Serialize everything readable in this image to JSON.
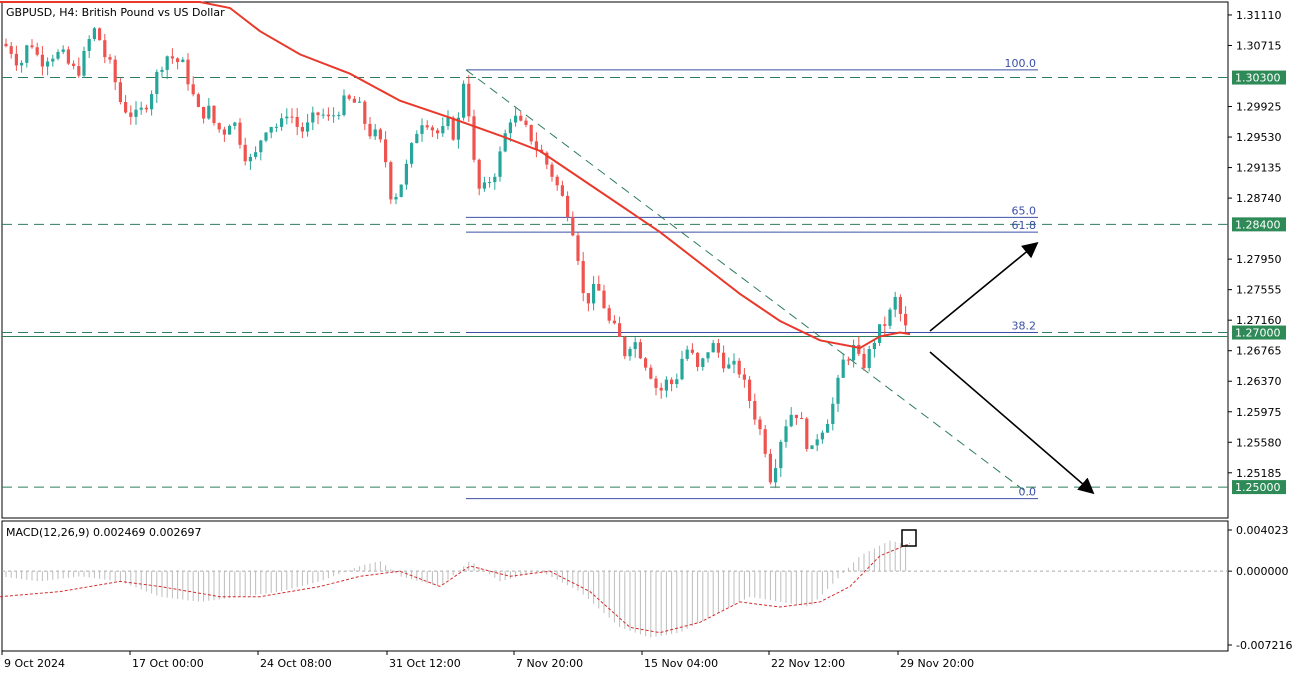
{
  "header": {
    "symbol_text": "GBPUSD, H4:  British Pound vs US Dollar"
  },
  "macd_header": {
    "text": "MACD(12,26,9) 0.002469 0.002697"
  },
  "colors": {
    "bull": "#26a69a",
    "bear": "#ef5350",
    "ma": "#e8392b",
    "level_line": "#2e7d5b",
    "level_tag": "#2e8b57",
    "fib": "#3b4fa8",
    "macd_hist": "#bdbdbd",
    "macd_signal": "#d32f2f",
    "frame": "#000000"
  },
  "chart_data": [
    {
      "type": "candlestick",
      "symbol": "GBPUSD",
      "timeframe": "H4",
      "ylim": [
        1.2485,
        1.3135
      ],
      "y_ticks": [
        "1.31110",
        "1.30715",
        "1.30300",
        "1.29925",
        "1.29530",
        "1.29135",
        "1.28740",
        "1.28400",
        "1.27950",
        "1.27555",
        "1.27160",
        "1.27000",
        "1.26765",
        "1.26370",
        "1.25975",
        "1.25580",
        "1.25185",
        "1.25000"
      ],
      "x_ticks": [
        "9 Oct 2024",
        "17 Oct 00:00",
        "24 Oct 08:00",
        "31 Oct 12:00",
        "7 Nov 20:00",
        "15 Nov 04:00",
        "22 Nov 12:00",
        "29 Nov 20:00"
      ],
      "horizontal_levels": [
        {
          "value": 1.303,
          "label": "1.30300"
        },
        {
          "value": 1.284,
          "label": "1.28400"
        },
        {
          "value": 1.27,
          "label": "1.27000"
        },
        {
          "value": 1.25,
          "label": "1.25000"
        }
      ],
      "fibonacci": {
        "levels": [
          {
            "label": "100.0",
            "value": 1.304
          },
          {
            "label": "65.0",
            "value": 1.2849
          },
          {
            "label": "61.8",
            "value": 1.283
          },
          {
            "label": "38.2",
            "value": 1.27
          },
          {
            "label": "0.0",
            "value": 1.2485
          }
        ]
      },
      "trendline": {
        "from": {
          "x": "5 Nov",
          "y": 1.304
        },
        "to": {
          "x": "12 Dec",
          "y": 1.25
        }
      },
      "scenario_arrows": [
        {
          "direction": "up",
          "from": 1.2722,
          "to": 1.2817
        },
        {
          "direction": "down",
          "from": 1.2688,
          "to": 1.2508
        }
      ],
      "price_path": [
        [
          0,
          1.3075
        ],
        [
          10,
          1.3068
        ],
        [
          20,
          1.3045
        ],
        [
          30,
          1.308
        ],
        [
          40,
          1.305
        ],
        [
          50,
          1.306
        ],
        [
          62,
          1.306
        ],
        [
          72,
          1.304
        ],
        [
          80,
          1.304
        ],
        [
          88,
          1.3075
        ],
        [
          96,
          1.3095
        ],
        [
          104,
          1.306
        ],
        [
          112,
          1.304
        ],
        [
          120,
          1.3
        ],
        [
          128,
          1.2985
        ],
        [
          136,
          1.298
        ],
        [
          144,
          1.299
        ],
        [
          152,
          1.3015
        ],
        [
          160,
          1.3045
        ],
        [
          168,
          1.306
        ],
        [
          176,
          1.3052
        ],
        [
          184,
          1.3045
        ],
        [
          192,
          1.301
        ],
        [
          200,
          1.298
        ],
        [
          208,
          1.299
        ],
        [
          216,
          1.2965
        ],
        [
          224,
          1.296
        ],
        [
          232,
          1.298
        ],
        [
          240,
          1.295
        ],
        [
          248,
          1.292
        ],
        [
          256,
          1.293
        ],
        [
          264,
          1.2965
        ],
        [
          272,
          1.297
        ],
        [
          280,
          1.2965
        ],
        [
          288,
          1.299
        ],
        [
          296,
          1.2968
        ],
        [
          304,
          1.296
        ],
        [
          312,
          1.2975
        ],
        [
          320,
          1.2985
        ],
        [
          328,
          1.2975
        ],
        [
          336,
          1.2985
        ],
        [
          344,
          1.2998
        ],
        [
          352,
          1.3
        ],
        [
          360,
          1.299
        ],
        [
          368,
          1.296
        ],
        [
          376,
          1.2955
        ],
        [
          384,
          1.2935
        ],
        [
          392,
          1.287
        ],
        [
          400,
          1.289
        ],
        [
          408,
          1.292
        ],
        [
          416,
          1.296
        ],
        [
          424,
          1.298
        ],
        [
          432,
          1.2965
        ],
        [
          440,
          1.2955
        ],
        [
          448,
          1.297
        ],
        [
          456,
          1.295
        ],
        [
          464,
          1.303
        ],
        [
          470,
          1.2975
        ],
        [
          476,
          1.289
        ],
        [
          482,
          1.288
        ],
        [
          488,
          1.2895
        ],
        [
          494,
          1.2905
        ],
        [
          500,
          1.293
        ],
        [
          506,
          1.296
        ],
        [
          512,
          1.2985
        ],
        [
          518,
          1.297
        ],
        [
          524,
          1.2965
        ],
        [
          530,
          1.2955
        ],
        [
          536,
          1.294
        ],
        [
          542,
          1.293
        ],
        [
          548,
          1.2915
        ],
        [
          554,
          1.29
        ],
        [
          560,
          1.288
        ],
        [
          566,
          1.2865
        ],
        [
          572,
          1.284
        ],
        [
          578,
          1.28
        ],
        [
          584,
          1.274
        ],
        [
          590,
          1.2745
        ],
        [
          596,
          1.276
        ],
        [
          602,
          1.2745
        ],
        [
          608,
          1.2715
        ],
        [
          614,
          1.2705
        ],
        [
          620,
          1.269
        ],
        [
          626,
          1.267
        ],
        [
          632,
          1.2695
        ],
        [
          638,
          1.268
        ],
        [
          644,
          1.2665
        ],
        [
          650,
          1.265
        ],
        [
          656,
          1.263
        ],
        [
          662,
          1.2625
        ],
        [
          668,
          1.264
        ],
        [
          674,
          1.263
        ],
        [
          680,
          1.266
        ],
        [
          686,
          1.268
        ],
        [
          692,
          1.267
        ],
        [
          698,
          1.265
        ],
        [
          704,
          1.2665
        ],
        [
          710,
          1.2685
        ],
        [
          716,
          1.268
        ],
        [
          722,
          1.2665
        ],
        [
          728,
          1.2655
        ],
        [
          734,
          1.2655
        ],
        [
          740,
          1.265
        ],
        [
          746,
          1.2625
        ],
        [
          752,
          1.2605
        ],
        [
          758,
          1.258
        ],
        [
          764,
          1.256
        ],
        [
          770,
          1.2512
        ],
        [
          776,
          1.2535
        ],
        [
          782,
          1.257
        ],
        [
          788,
          1.259
        ],
        [
          794,
          1.26
        ],
        [
          800,
          1.259
        ],
        [
          806,
          1.256
        ],
        [
          812,
          1.2545
        ],
        [
          818,
          1.257
        ],
        [
          824,
          1.258
        ],
        [
          830,
          1.2595
        ],
        [
          836,
          1.262
        ],
        [
          842,
          1.266
        ],
        [
          848,
          1.267
        ],
        [
          854,
          1.268
        ],
        [
          860,
          1.266
        ],
        [
          866,
          1.266
        ],
        [
          872,
          1.2685
        ],
        [
          878,
          1.27
        ],
        [
          884,
          1.271
        ],
        [
          890,
          1.2725
        ],
        [
          896,
          1.2745
        ],
        [
          902,
          1.2715
        ],
        [
          908,
          1.2698
        ]
      ],
      "ma_path": [
        [
          0,
          1.3135
        ],
        [
          120,
          1.3135
        ],
        [
          200,
          1.3135
        ],
        [
          230,
          1.312
        ],
        [
          260,
          1.309
        ],
        [
          300,
          1.306
        ],
        [
          350,
          1.3035
        ],
        [
          400,
          1.3
        ],
        [
          450,
          1.2978
        ],
        [
          500,
          1.2955
        ],
        [
          540,
          1.2935
        ],
        [
          580,
          1.29
        ],
        [
          620,
          1.2865
        ],
        [
          660,
          1.283
        ],
        [
          700,
          1.279
        ],
        [
          740,
          1.275
        ],
        [
          780,
          1.2715
        ],
        [
          820,
          1.269
        ],
        [
          860,
          1.268
        ],
        [
          880,
          1.2695
        ],
        [
          900,
          1.27
        ],
        [
          910,
          1.2698
        ]
      ]
    },
    {
      "type": "bar",
      "name": "MACD(12,26,9)",
      "ylim": [
        -0.007216,
        0.004023
      ],
      "y_ticks": [
        "0.004023",
        "0.000000",
        "-0.007216"
      ],
      "macd_main_last": 0.002469,
      "macd_signal_last": 0.002697,
      "hist_path": [
        [
          0,
          -0.0005
        ],
        [
          40,
          -0.001
        ],
        [
          80,
          -0.0005
        ],
        [
          120,
          -0.001
        ],
        [
          160,
          -0.0025
        ],
        [
          200,
          -0.003
        ],
        [
          240,
          -0.0025
        ],
        [
          280,
          -0.002
        ],
        [
          320,
          -0.001
        ],
        [
          360,
          0.0005
        ],
        [
          380,
          0.001
        ],
        [
          400,
          -0.0005
        ],
        [
          440,
          -0.0015
        ],
        [
          470,
          0.001
        ],
        [
          500,
          -0.001
        ],
        [
          540,
          0.0
        ],
        [
          580,
          -0.002
        ],
        [
          620,
          -0.0055
        ],
        [
          650,
          -0.0065
        ],
        [
          680,
          -0.006
        ],
        [
          720,
          -0.004
        ],
        [
          750,
          -0.0025
        ],
        [
          780,
          -0.003
        ],
        [
          810,
          -0.0035
        ],
        [
          830,
          -0.0015
        ],
        [
          860,
          0.0015
        ],
        [
          890,
          0.003
        ],
        [
          910,
          0.0025
        ]
      ],
      "signal_path": [
        [
          0,
          -0.0025
        ],
        [
          60,
          -0.002
        ],
        [
          120,
          -0.001
        ],
        [
          160,
          -0.0015
        ],
        [
          220,
          -0.0025
        ],
        [
          260,
          -0.0025
        ],
        [
          320,
          -0.0015
        ],
        [
          360,
          -0.0005
        ],
        [
          400,
          0.0
        ],
        [
          440,
          -0.0015
        ],
        [
          470,
          0.0005
        ],
        [
          510,
          -0.0005
        ],
        [
          550,
          0.0
        ],
        [
          590,
          -0.002
        ],
        [
          630,
          -0.0055
        ],
        [
          660,
          -0.006
        ],
        [
          700,
          -0.005
        ],
        [
          740,
          -0.003
        ],
        [
          780,
          -0.0035
        ],
        [
          820,
          -0.003
        ],
        [
          850,
          -0.0015
        ],
        [
          880,
          0.0015
        ],
        [
          910,
          0.0027
        ]
      ]
    }
  ]
}
